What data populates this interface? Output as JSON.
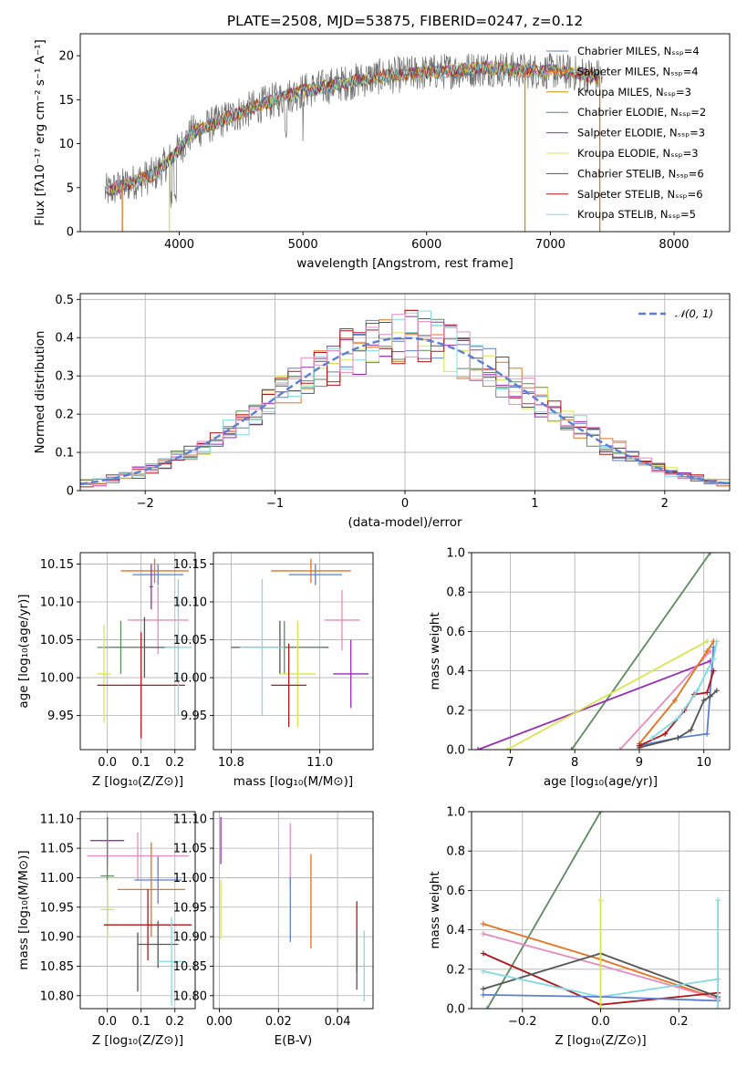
{
  "colors": {
    "blue": "#5b7fd6",
    "orange": "#e8711d",
    "sage": "#5d8b5f",
    "purple": "#9a2bb5",
    "lime": "#d4e84e",
    "gray": "#555555",
    "red": "#b0161b",
    "cyan": "#7fdbe0",
    "pink": "#e98bbd"
  },
  "chart_data": [
    {
      "id": "spectrum",
      "type": "line",
      "title": "PLATE=2508, MJD=53875, FIBERID=0247, z=0.12",
      "xlabel": "wavelength [Angstrom, rest frame]",
      "ylabel": "Flux [fλ10⁻¹⁷ erg cm⁻² s⁻¹ A⁻¹]",
      "xlim": [
        3200,
        8450
      ],
      "ylim": [
        0,
        22.5
      ],
      "xticks": [
        4000,
        5000,
        6000,
        7000,
        8000
      ],
      "yticks": [
        0,
        5,
        10,
        15,
        20
      ],
      "grid": false,
      "legend_position": "upper-right",
      "series": [
        {
          "name": "Chabrier MILES, Nₛₛₚ=4",
          "color": "blue"
        },
        {
          "name": "Salpeter MILES, Nₛₛₚ=4",
          "color": "orange"
        },
        {
          "name": "Kroupa MILES, Nₛₛₚ=3",
          "color": "#c89200"
        },
        {
          "name": "Chabrier ELODIE, Nₛₛₚ=2",
          "color": "sage"
        },
        {
          "name": "Salpeter ELODIE, Nₛₛₚ=3",
          "color": "purple"
        },
        {
          "name": "Kroupa ELODIE, Nₛₛₚ=3",
          "color": "lime"
        },
        {
          "name": "Chabrier STELIB, Nₛₛₚ=6",
          "color": "gray"
        },
        {
          "name": "Salpeter STELIB, Nₛₛₚ=6",
          "color": "red"
        },
        {
          "name": "Kroupa STELIB, Nₛₛₚ=5",
          "color": "cyan"
        }
      ],
      "continuum": [
        [
          3400,
          4.5
        ],
        [
          3600,
          5.5
        ],
        [
          3800,
          6.5
        ],
        [
          3950,
          8.5
        ],
        [
          4100,
          11.2
        ],
        [
          4400,
          13
        ],
        [
          4700,
          14.6
        ],
        [
          5000,
          16
        ],
        [
          5300,
          16.8
        ],
        [
          5600,
          17.6
        ],
        [
          5900,
          18
        ],
        [
          6200,
          18.3
        ],
        [
          6500,
          18.6
        ],
        [
          6800,
          18.3
        ],
        [
          7100,
          18.2
        ],
        [
          7400,
          17.6
        ]
      ],
      "dropouts": [
        {
          "x": 3540,
          "color": "orange"
        },
        {
          "x": 3920,
          "color": "lime"
        },
        {
          "x": 6795,
          "color": "#c89200"
        },
        {
          "x": 7400,
          "color": "orange"
        }
      ]
    },
    {
      "id": "residuals",
      "type": "histogram",
      "xlabel": "(data-model)/error",
      "ylabel": "Normed distribution",
      "xlim": [
        -2.5,
        2.5
      ],
      "ylim": [
        0,
        0.515
      ],
      "xticks": [
        -2,
        -1,
        0,
        1,
        2
      ],
      "yticks": [
        0.0,
        0.1,
        0.2,
        0.3,
        0.4,
        0.5
      ],
      "grid": true,
      "legend_position": "upper-right",
      "reference": {
        "name": "𝒩(0, 1)",
        "color": "blue",
        "style": "dashed"
      },
      "bin_width": 0.1,
      "series_colors": [
        "blue",
        "orange",
        "sage",
        "purple",
        "lime",
        "gray",
        "red",
        "cyan",
        "pink"
      ]
    },
    {
      "id": "age_vs_Z",
      "type": "errorbar",
      "xlabel": "Z [log₁₀(Z/Z⊙)]",
      "ylabel": "age  [log₁₀(age/yr)]",
      "xlim": [
        -0.08,
        0.26
      ],
      "ylim": [
        9.905,
        10.165
      ],
      "xticks": [
        0.0,
        0.1,
        0.2
      ],
      "xticklabels": [
        "0.0",
        "0.1",
        "0.2"
      ],
      "yticks": [
        9.95,
        10.0,
        10.05,
        10.1,
        10.15
      ],
      "yticklabels": [
        "9.95",
        "10.00",
        "10.05",
        "10.10",
        "10.15"
      ],
      "grid": true,
      "points": [
        {
          "color": "orange",
          "x": 0.14,
          "xerr": 0.1,
          "y": 10.141,
          "yerr": 0.016
        },
        {
          "color": "blue",
          "x": 0.15,
          "xerr": 0.075,
          "y": 10.136,
          "yerr": 0.014
        },
        {
          "color": "pink",
          "x": 0.15,
          "xerr": 0.09,
          "y": 10.076,
          "yerr": 0.045
        },
        {
          "color": "gray",
          "x": 0.11,
          "xerr": 0.1,
          "y": 10.04,
          "yerr": 0.04
        },
        {
          "color": "sage",
          "x": 0.04,
          "xerr": 0.07,
          "y": 10.04,
          "yerr": 0.035
        },
        {
          "color": "lime",
          "x": -0.01,
          "xerr": 0.02,
          "y": 10.005,
          "yerr": 0.065
        },
        {
          "color": "red",
          "x": 0.1,
          "xerr": 0.13,
          "y": 9.99,
          "yerr": 0.07
        },
        {
          "color": "cyan",
          "x": 0.21,
          "xerr": 0.04,
          "y": 10.04,
          "yerr": 0.09
        },
        {
          "color": "purple",
          "x": 0.13,
          "xerr": 0.005,
          "y": 10.12,
          "yerr": 0.03
        }
      ]
    },
    {
      "id": "age_vs_mass",
      "type": "errorbar",
      "xlabel": "mass [log₁₀(M/M⊙)]",
      "ylabel": "",
      "xlim": [
        10.76,
        11.12
      ],
      "ylim": [
        9.905,
        10.165
      ],
      "xticks": [
        10.8,
        11.0
      ],
      "xticklabels": [
        "10.8",
        "11.0"
      ],
      "yticks": [
        9.95,
        10.0,
        10.05,
        10.1,
        10.15
      ],
      "yticklabels": [
        "9.95",
        "10.00",
        "10.05",
        "10.10",
        "10.15"
      ],
      "grid": true,
      "points": [
        {
          "color": "orange",
          "x": 10.98,
          "xerr": 0.09,
          "y": 10.141,
          "yerr": 0.016
        },
        {
          "color": "blue",
          "x": 10.99,
          "xerr": 0.06,
          "y": 10.136,
          "yerr": 0.014
        },
        {
          "color": "pink",
          "x": 11.05,
          "xerr": 0.04,
          "y": 10.076,
          "yerr": 0.04
        },
        {
          "color": "gray",
          "x": 10.91,
          "xerr": 0.11,
          "y": 10.04,
          "yerr": 0.035
        },
        {
          "color": "sage",
          "x": 10.92,
          "xerr": 0.09,
          "y": 10.04,
          "yerr": 0.035
        },
        {
          "color": "lime",
          "x": 10.95,
          "xerr": 0.04,
          "y": 10.005,
          "yerr": 0.07
        },
        {
          "color": "red",
          "x": 10.93,
          "xerr": 0.04,
          "y": 9.99,
          "yerr": 0.055
        },
        {
          "color": "cyan",
          "x": 10.87,
          "xerr": 0.05,
          "y": 10.04,
          "yerr": 0.09
        },
        {
          "color": "purple",
          "x": 11.07,
          "xerr": 0.04,
          "y": 10.005,
          "yerr": 0.045
        }
      ]
    },
    {
      "id": "weight_vs_age",
      "type": "line",
      "xlabel": "age  [log₁₀(age/yr)]",
      "ylabel": "mass weight",
      "xlim": [
        6.4,
        10.4
      ],
      "ylim": [
        0,
        1.0
      ],
      "xticks": [
        7,
        8,
        9,
        10
      ],
      "yticks": [
        0.0,
        0.2,
        0.4,
        0.6,
        0.8,
        1.0
      ],
      "yticklabels": [
        "0.0",
        "0.2",
        "0.4",
        "0.6",
        "0.8",
        "1.0"
      ],
      "grid": true,
      "series": [
        {
          "color": "sage",
          "x": [
            7.95,
            10.1
          ],
          "y": [
            0.0,
            1.0
          ]
        },
        {
          "color": "purple",
          "x": [
            6.5,
            10.1
          ],
          "y": [
            0.0,
            0.45
          ]
        },
        {
          "color": "lime",
          "x": [
            6.95,
            10.05
          ],
          "y": [
            0.0,
            0.55
          ]
        },
        {
          "color": "pink",
          "x": [
            8.7,
            10.1
          ],
          "y": [
            0.0,
            0.5
          ]
        },
        {
          "color": "orange",
          "x": [
            9.0,
            9.55,
            10.05,
            10.15
          ],
          "y": [
            0.03,
            0.25,
            0.5,
            0.55
          ]
        },
        {
          "color": "blue",
          "x": [
            9.0,
            9.6,
            10.05,
            10.15
          ],
          "y": [
            0.02,
            0.06,
            0.08,
            0.52
          ]
        },
        {
          "color": "gray",
          "x": [
            9.0,
            9.6,
            9.8,
            10.0,
            10.1,
            10.2
          ],
          "y": [
            0.01,
            0.06,
            0.1,
            0.25,
            0.27,
            0.3
          ]
        },
        {
          "color": "red",
          "x": [
            9.0,
            9.4,
            9.7,
            9.85,
            10.05,
            10.15
          ],
          "y": [
            0.02,
            0.08,
            0.2,
            0.28,
            0.29,
            0.4
          ]
        },
        {
          "color": "cyan",
          "x": [
            9.2,
            9.6,
            9.9,
            10.05,
            10.15,
            10.2
          ],
          "y": [
            0.06,
            0.16,
            0.3,
            0.4,
            0.46,
            0.55
          ]
        }
      ]
    },
    {
      "id": "mass_vs_Z",
      "type": "errorbar",
      "xlabel": "Z [log₁₀(Z/Z⊙)]",
      "ylabel": "mass [log₁₀(M/M⊙)]",
      "xlim": [
        -0.08,
        0.26
      ],
      "ylim": [
        10.778,
        11.112
      ],
      "xticks": [
        0.0,
        0.1,
        0.2
      ],
      "xticklabels": [
        "0.0",
        "0.1",
        "0.2"
      ],
      "yticks": [
        10.8,
        10.85,
        10.9,
        10.95,
        11.0,
        11.05,
        11.1
      ],
      "yticklabels": [
        "10.80",
        "10.85",
        "10.90",
        "10.95",
        "11.00",
        "11.05",
        "11.10"
      ],
      "grid": true,
      "points": [
        {
          "color": "purple",
          "x": 0.0,
          "xerr": 0.05,
          "y": 11.063,
          "yerr": 0.04
        },
        {
          "color": "pink",
          "x": 0.09,
          "xerr": 0.15,
          "y": 11.037,
          "yerr": 0.04
        },
        {
          "color": "sage",
          "x": 0.0,
          "xerr": 0.02,
          "y": 11.003,
          "yerr": 0.1
        },
        {
          "color": "blue",
          "x": 0.15,
          "xerr": 0.07,
          "y": 10.996,
          "yerr": 0.04
        },
        {
          "color": "orange",
          "x": 0.13,
          "xerr": 0.1,
          "y": 10.98,
          "yerr": 0.08
        },
        {
          "color": "lime",
          "x": 0.0,
          "xerr": 0.02,
          "y": 10.946,
          "yerr": 0.05
        },
        {
          "color": "red",
          "x": 0.12,
          "xerr": 0.13,
          "y": 10.92,
          "yerr": 0.06
        },
        {
          "color": "gray",
          "x": 0.15,
          "xerr": 0.06,
          "y": 10.887,
          "yerr": 0.04
        },
        {
          "color": "cyan",
          "x": 0.19,
          "xerr": 0.04,
          "y": 10.858,
          "yerr": 0.075
        },
        {
          "color": "gray",
          "x": 0.09,
          "xerr": 0.0,
          "y": 10.857,
          "yerr": 0.05
        }
      ]
    },
    {
      "id": "mass_vs_EBV",
      "type": "errorbar",
      "xlabel": "E(B-V)",
      "ylabel": "",
      "xlim": [
        -0.002,
        0.052
      ],
      "ylim": [
        10.778,
        11.112
      ],
      "xticks": [
        0.0,
        0.02,
        0.04
      ],
      "xticklabels": [
        "0.00",
        "0.02",
        "0.04"
      ],
      "yticks": [
        10.8,
        10.85,
        10.9,
        10.95,
        11.0,
        11.05,
        11.1
      ],
      "yticklabels": [
        "10.80",
        "10.85",
        "10.90",
        "10.95",
        "11.00",
        "11.05",
        "11.10"
      ],
      "grid": true,
      "points": [
        {
          "color": "purple",
          "x": 0.0005,
          "xerr": 0,
          "y": 11.063,
          "yerr": 0.04
        },
        {
          "color": "lime",
          "x": 0.0005,
          "xerr": 0,
          "y": 10.946,
          "yerr": 0.05
        },
        {
          "color": "pink",
          "x": 0.024,
          "xerr": 0,
          "y": 11.037,
          "yerr": 0.055
        },
        {
          "color": "blue",
          "x": 0.024,
          "xerr": 0,
          "y": 10.946,
          "yerr": 0.055
        },
        {
          "color": "orange",
          "x": 0.031,
          "xerr": 0,
          "y": 10.96,
          "yerr": 0.08
        },
        {
          "color": "red",
          "x": 0.0465,
          "xerr": 0,
          "y": 10.9,
          "yerr": 0.06
        },
        {
          "color": "gray",
          "x": 0.0465,
          "xerr": 0,
          "y": 10.86,
          "yerr": 0.05
        },
        {
          "color": "cyan",
          "x": 0.049,
          "xerr": 0,
          "y": 10.85,
          "yerr": 0.06
        }
      ]
    },
    {
      "id": "weight_vs_Z",
      "type": "line",
      "xlabel": "Z [log₁₀(Z/Z⊙)]",
      "ylabel": "mass weight",
      "xlim": [
        -0.33,
        0.33
      ],
      "ylim": [
        0,
        1.0
      ],
      "xticks": [
        -0.2,
        0.0,
        0.2
      ],
      "xticklabels": [
        "−0.2",
        "0.0",
        "0.2"
      ],
      "yticks": [
        0.0,
        0.2,
        0.4,
        0.6,
        0.8,
        1.0
      ],
      "yticklabels": [
        "0.0",
        "0.2",
        "0.4",
        "0.6",
        "0.8",
        "1.0"
      ],
      "grid": true,
      "series": [
        {
          "color": "sage",
          "x": [
            -0.29,
            0.0
          ],
          "y": [
            0.0,
            1.0
          ]
        },
        {
          "color": "orange",
          "x": [
            -0.3,
            0.0,
            0.3
          ],
          "y": [
            0.43,
            0.25,
            0.05
          ]
        },
        {
          "color": "pink",
          "x": [
            -0.3,
            0.0,
            0.3
          ],
          "y": [
            0.38,
            0.22,
            0.05
          ]
        },
        {
          "color": "red",
          "x": [
            -0.3,
            0.0,
            0.3
          ],
          "y": [
            0.28,
            0.02,
            0.08
          ]
        },
        {
          "color": "gray",
          "x": [
            -0.3,
            0.0,
            0.3
          ],
          "y": [
            0.1,
            0.28,
            0.06
          ]
        },
        {
          "color": "cyan",
          "x": [
            -0.3,
            0.0,
            0.3
          ],
          "y": [
            0.19,
            0.06,
            0.15
          ]
        },
        {
          "color": "blue",
          "x": [
            -0.3,
            0.0,
            0.3
          ],
          "y": [
            0.07,
            0.06,
            0.04
          ]
        },
        {
          "color": "lime",
          "x": [
            0.0,
            0.0
          ],
          "y": [
            0.0,
            0.55
          ]
        },
        {
          "color": "cyan",
          "x": [
            0.3,
            0.3
          ],
          "y": [
            0.0,
            0.55
          ]
        }
      ]
    }
  ]
}
